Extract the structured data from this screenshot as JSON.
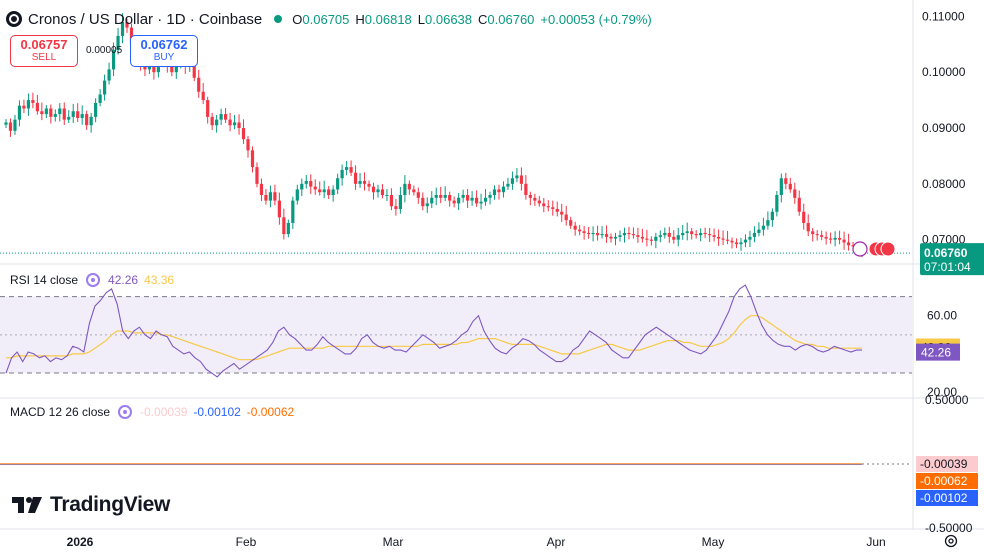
{
  "header": {
    "title": "Cronos / US Dollar · 1D · Coinbase",
    "ohlc": [
      {
        "key": "O",
        "value": "0.06705"
      },
      {
        "key": "H",
        "value": "0.06818"
      },
      {
        "key": "L",
        "value": "0.06638"
      },
      {
        "key": "C",
        "value": "0.06760"
      }
    ],
    "change": "+0.00053 (+0.79%)"
  },
  "trade": {
    "sell_price": "0.06757",
    "sell_label": "SELL",
    "buy_price": "0.06762",
    "buy_label": "BUY",
    "spread": "0.00005"
  },
  "rsi_legend": {
    "name": "RSI 14 close",
    "rsi": "42.26",
    "ma": "43.36"
  },
  "macd_legend": {
    "name": "MACD 12 26 close",
    "hist": "-0.00039",
    "macd": "-0.00102",
    "signal": "-0.00062"
  },
  "brand": {
    "name": "TradingView"
  },
  "colors": {
    "up": "#089981",
    "down": "#f23645",
    "rsi": "#7e57c2",
    "rsi_ma": "#f7c948",
    "macd": "#2962ff",
    "signal": "#ff6d00",
    "hist_badge": "#fccbcd",
    "price_badge": "#089981"
  },
  "chart_data": [
    {
      "type": "candlestick",
      "title": "Cronos / US Dollar · 1D · Coinbase",
      "x_ticks": [
        "2026",
        "Feb",
        "Mar",
        "Apr",
        "May",
        "Jun"
      ],
      "y_ticks": [
        "0.11000",
        "0.10000",
        "0.09000",
        "0.08000",
        "0.07000"
      ],
      "ylim": [
        0.066,
        0.1115
      ],
      "last_price": "0.06760",
      "countdown": "07:01:04",
      "close_series": [
        0.091,
        0.0895,
        0.0915,
        0.094,
        0.0935,
        0.095,
        0.0945,
        0.093,
        0.0925,
        0.0935,
        0.092,
        0.0925,
        0.0935,
        0.0915,
        0.092,
        0.093,
        0.0918,
        0.0925,
        0.0905,
        0.092,
        0.0945,
        0.096,
        0.0985,
        0.1005,
        0.104,
        0.1065,
        0.109,
        0.108,
        0.105,
        0.103,
        0.101,
        0.1005,
        0.101,
        0.1,
        0.102,
        0.1015,
        0.101,
        0.1,
        0.1015,
        0.1025,
        0.101,
        0.1015,
        0.099,
        0.0965,
        0.095,
        0.092,
        0.0905,
        0.0915,
        0.0925,
        0.0915,
        0.0905,
        0.091,
        0.09,
        0.088,
        0.086,
        0.083,
        0.08,
        0.078,
        0.077,
        0.0785,
        0.077,
        0.074,
        0.071,
        0.073,
        0.077,
        0.079,
        0.08,
        0.0805,
        0.0795,
        0.079,
        0.0785,
        0.079,
        0.078,
        0.079,
        0.081,
        0.0825,
        0.083,
        0.082,
        0.08,
        0.0805,
        0.08,
        0.0795,
        0.0785,
        0.079,
        0.078,
        0.078,
        0.076,
        0.0755,
        0.078,
        0.08,
        0.079,
        0.0785,
        0.0775,
        0.076,
        0.0765,
        0.0775,
        0.078,
        0.0775,
        0.078,
        0.077,
        0.0765,
        0.0775,
        0.078,
        0.077,
        0.0775,
        0.0765,
        0.0768,
        0.0775,
        0.078,
        0.079,
        0.0785,
        0.0795,
        0.08,
        0.081,
        0.0815,
        0.08,
        0.078,
        0.0775,
        0.077,
        0.0765,
        0.076,
        0.0758,
        0.0755,
        0.075,
        0.0745,
        0.0735,
        0.0725,
        0.0718,
        0.0715,
        0.0712,
        0.071,
        0.0712,
        0.0708,
        0.071,
        0.0705,
        0.0702,
        0.0705,
        0.0708,
        0.0712,
        0.071,
        0.0708,
        0.0705,
        0.0702,
        0.07,
        0.0698,
        0.0705,
        0.0708,
        0.0712,
        0.0705,
        0.07,
        0.0708,
        0.0712,
        0.0715,
        0.071,
        0.0708,
        0.0712,
        0.071,
        0.0708,
        0.0705,
        0.0702,
        0.07,
        0.0698,
        0.0695,
        0.0692,
        0.0695,
        0.07,
        0.0705,
        0.0712,
        0.0718,
        0.0725,
        0.0735,
        0.075,
        0.078,
        0.081,
        0.08,
        0.079,
        0.0775,
        0.075,
        0.073,
        0.0715,
        0.071,
        0.0708,
        0.0705,
        0.0702,
        0.07,
        0.0703,
        0.07,
        0.0695,
        0.069,
        0.0688,
        0.0682,
        0.0676
      ]
    },
    {
      "type": "line",
      "title": "RSI 14 close",
      "y_ticks": [
        "60.00",
        "20.00"
      ],
      "ylim": [
        18,
        86
      ],
      "bands": [
        30,
        50,
        70
      ],
      "series": [
        {
          "name": "RSI",
          "last": "42.26",
          "values": [
            30,
            38,
            41,
            36,
            41,
            40,
            38,
            39,
            36,
            38,
            37,
            39,
            44,
            43,
            41,
            56,
            65,
            68,
            72,
            74,
            66,
            52,
            48,
            52,
            54,
            50,
            48,
            52,
            50,
            49,
            44,
            42,
            40,
            41,
            38,
            36,
            32,
            30,
            28,
            31,
            33,
            35,
            32,
            34,
            36,
            38,
            40,
            42,
            46,
            52,
            54,
            50,
            48,
            45,
            42,
            42,
            45,
            49,
            46,
            44,
            42,
            40,
            40,
            43,
            48,
            50,
            46,
            44,
            43,
            44,
            42,
            42,
            41,
            44,
            47,
            50,
            48,
            46,
            43,
            44,
            45,
            47,
            50,
            52,
            57,
            60,
            52,
            47,
            43,
            41,
            40,
            43,
            45,
            48,
            47,
            45,
            42,
            40,
            38,
            36,
            36,
            38,
            42,
            44,
            48,
            52,
            50,
            48,
            46,
            42,
            40,
            38,
            38,
            42,
            46,
            50,
            52,
            54,
            52,
            50,
            48,
            46,
            44,
            42,
            41,
            40,
            42,
            46,
            50,
            56,
            62,
            70,
            74,
            76,
            70,
            62,
            55,
            50,
            47,
            45,
            44,
            44,
            42,
            44,
            45,
            44,
            42,
            41,
            42,
            44,
            43,
            42,
            41,
            42,
            42
          ]
        },
        {
          "name": "RSI-based MA",
          "last": "43.36",
          "values": [
            38,
            38,
            39,
            39,
            39,
            39,
            39,
            39,
            39,
            39,
            39,
            39,
            40,
            40,
            40,
            41,
            43,
            45,
            47,
            50,
            52,
            52,
            52,
            51,
            51,
            51,
            51,
            51,
            50,
            50,
            49,
            48,
            47,
            46,
            45,
            44,
            43,
            42,
            41,
            40,
            39,
            38,
            37,
            37,
            37,
            37,
            38,
            39,
            40,
            41,
            42,
            43,
            43,
            43,
            43,
            43,
            43,
            43,
            44,
            44,
            44,
            44,
            44,
            44,
            44,
            44,
            44,
            44,
            44,
            44,
            44,
            44,
            44,
            44,
            44,
            45,
            45,
            45,
            45,
            45,
            45,
            45,
            46,
            46,
            47,
            48,
            48,
            48,
            48,
            47,
            46,
            45,
            45,
            45,
            45,
            45,
            44,
            43,
            42,
            41,
            40,
            40,
            40,
            40,
            41,
            42,
            43,
            44,
            45,
            45,
            44,
            43,
            42,
            42,
            42,
            43,
            44,
            45,
            46,
            47,
            47,
            47,
            46,
            46,
            45,
            44,
            44,
            44,
            45,
            46,
            48,
            51,
            55,
            58,
            60,
            60,
            59,
            57,
            55,
            53,
            51,
            49,
            47,
            46,
            45,
            45,
            44,
            44,
            43,
            43,
            43,
            43,
            43,
            43,
            43
          ]
        }
      ]
    },
    {
      "type": "line",
      "title": "MACD 12 26 close",
      "y_ticks": [
        "0.50000",
        "-0.50000"
      ],
      "ylim": [
        -0.5,
        0.5
      ],
      "series": [
        {
          "name": "MACD",
          "last": "-0.00102"
        },
        {
          "name": "Signal",
          "last": "-0.00062"
        },
        {
          "name": "Histogram",
          "last": "-0.00039"
        }
      ]
    }
  ]
}
